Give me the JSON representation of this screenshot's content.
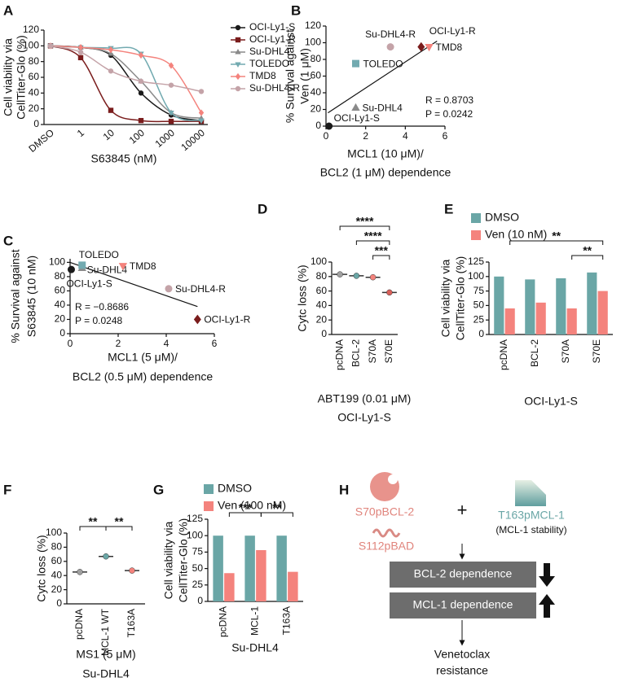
{
  "chart_data": [
    {
      "type": "line",
      "label": "A",
      "y_label": [
        "Cell viability via",
        "CellTiter-Glo (%)"
      ],
      "x_label": [
        "S63845 (nM)"
      ],
      "categories": [
        "DMSO",
        "1",
        "10",
        "100",
        "1000",
        "10000"
      ],
      "series": [
        {
          "name": "OCI-Ly1-S",
          "color": "#1a1a1a",
          "marker": "circle",
          "values": [
            100,
            98,
            88,
            40,
            12,
            5
          ]
        },
        {
          "name": "OCI-Ly1-R",
          "color": "#7a1c1c",
          "marker": "square",
          "values": [
            100,
            85,
            18,
            5,
            4,
            4
          ]
        },
        {
          "name": "Su-DHL4",
          "color": "#8a8a8a",
          "marker": "triangle",
          "values": [
            100,
            98,
            90,
            55,
            15,
            8
          ]
        },
        {
          "name": "TOLEDO",
          "color": "#72aab0",
          "marker": "triangle-down",
          "values": [
            100,
            98,
            97,
            90,
            15,
            5
          ]
        },
        {
          "name": "TMD8",
          "color": "#f4837d",
          "marker": "diamond",
          "values": [
            100,
            98,
            95,
            88,
            75,
            15
          ]
        },
        {
          "name": "Su-DHL4-R",
          "color": "#c4a3a8",
          "marker": "circle",
          "values": [
            100,
            92,
            68,
            55,
            50,
            42
          ]
        }
      ],
      "ylim": [
        0,
        120
      ],
      "yticks": [
        0,
        20,
        40,
        60,
        80,
        100,
        120
      ],
      "legend": "right"
    },
    {
      "type": "scatter",
      "label": "B",
      "y_label": [
        "% Survival against",
        "Ven (1 μM)"
      ],
      "x_label": [
        "MCL1 (10 μM)/",
        "BCL2 (1 μM) dependence"
      ],
      "points": [
        {
          "name": "OCI-Ly1-S",
          "x": 0.15,
          "y": 0,
          "color": "#1a1a1a",
          "marker": "circle"
        },
        {
          "name": "Su-DHL4",
          "x": 1.5,
          "y": 22,
          "color": "#8a8a8a",
          "marker": "triangle"
        },
        {
          "name": "TOLEDO",
          "x": 1.5,
          "y": 75,
          "color": "#72aab0",
          "marker": "square"
        },
        {
          "name": "Su-DHL4-R",
          "x": 3.25,
          "y": 95,
          "color": "#c4a3a8",
          "marker": "circle"
        },
        {
          "name": "OCI-Ly1-R",
          "x": 4.8,
          "y": 95,
          "color": "#7a1c1c",
          "marker": "diamond"
        },
        {
          "name": "TMD8",
          "x": 5.2,
          "y": 95,
          "color": "#f4837d",
          "marker": "triangle-down"
        }
      ],
      "fit": {
        "x": [
          0.1,
          5.6
        ],
        "y": [
          16,
          102
        ]
      },
      "annotations": [
        "R = 0.8703",
        "P = 0.0242"
      ],
      "xlim": [
        0,
        6
      ],
      "xticks": [
        0,
        2,
        4,
        6
      ],
      "ylim": [
        0,
        120
      ],
      "yticks": [
        0,
        20,
        40,
        60,
        80,
        100,
        120
      ]
    },
    {
      "type": "scatter",
      "label": "C",
      "y_label": [
        "% Survival against",
        "S63845 (10 nM)"
      ],
      "x_label": [
        "MCL1 (5 μM)/",
        "BCL2 (0.5 μM) dependence"
      ],
      "points": [
        {
          "name": "OCI-Ly1-S",
          "x": 0.05,
          "y": 90,
          "color": "#1a1a1a",
          "marker": "circle"
        },
        {
          "name": "Su-DHL4",
          "x": 0.5,
          "y": 92,
          "color": "#8a8a8a",
          "marker": "triangle"
        },
        {
          "name": "TOLEDO",
          "x": 0.5,
          "y": 96,
          "color": "#72aab0",
          "marker": "square"
        },
        {
          "name": "TMD8",
          "x": 2.2,
          "y": 95,
          "color": "#f4837d",
          "marker": "triangle-down"
        },
        {
          "name": "Su-DHL4-R",
          "x": 4.1,
          "y": 63,
          "color": "#c4a3a8",
          "marker": "circle"
        },
        {
          "name": "OCI-Ly1-R",
          "x": 5.3,
          "y": 20,
          "color": "#7a1c1c",
          "marker": "diamond"
        }
      ],
      "fit": {
        "x": [
          0,
          5.3
        ],
        "y": [
          100,
          38
        ]
      },
      "annotations": [
        "R = −0.8686",
        "P = 0.0248"
      ],
      "xlim": [
        0,
        6
      ],
      "xticks": [
        0,
        2,
        4,
        6
      ],
      "ylim": [
        0,
        105
      ],
      "yticks": [
        0,
        20,
        40,
        60,
        80,
        100
      ]
    },
    {
      "type": "dot",
      "label": "D",
      "y_label": [
        "Cytc loss (%)"
      ],
      "x_label": [
        "ABT199 (0.01 μM)",
        "OCI-Ly1-S"
      ],
      "categories": [
        "pcDNA",
        "BCL-2",
        "S70A",
        "S70E"
      ],
      "values": [
        83,
        81,
        79,
        58
      ],
      "colors": [
        "#a0a0a0",
        "#6aa6a6",
        "#f4837d",
        "#d9605a"
      ],
      "ylim": [
        0,
        100
      ],
      "yticks": [
        0,
        20,
        40,
        60,
        80,
        100
      ],
      "significance": [
        {
          "from": 0,
          "to": 3,
          "label": "****"
        },
        {
          "from": 1,
          "to": 3,
          "label": "****"
        },
        {
          "from": 2,
          "to": 3,
          "label": "***"
        }
      ]
    },
    {
      "type": "bar",
      "label": "E",
      "y_label": [
        "Cell viability via",
        "CellTiter-Glo (%)"
      ],
      "x_label": [
        "OCI-Ly1-S"
      ],
      "categories": [
        "pcDNA",
        "BCL-2",
        "S70A",
        "S70E"
      ],
      "series": [
        {
          "name": "DMSO",
          "color": "#6aa6a6",
          "values": [
            100,
            95,
            97,
            107
          ]
        },
        {
          "name": "Ven (10 nM)",
          "color": "#f4837d",
          "values": [
            45,
            55,
            45,
            75
          ]
        }
      ],
      "ylim": [
        0,
        125
      ],
      "yticks": [
        0,
        25,
        50,
        75,
        100,
        125
      ],
      "legend": "top",
      "significance": [
        {
          "series": 1,
          "from": 0,
          "to": 3,
          "label": "**"
        },
        {
          "series": 1,
          "from": 2,
          "to": 3,
          "label": "**"
        }
      ]
    },
    {
      "type": "dot",
      "label": "F",
      "y_label": [
        "Cytc loss (%)"
      ],
      "x_label": [
        "MS1 (5 μM)",
        "Su-DHL4"
      ],
      "categories": [
        "pcDNA",
        "MCL-1 WT",
        "T163A"
      ],
      "values": [
        45,
        67,
        47
      ],
      "colors": [
        "#a0a0a0",
        "#6aa6a6",
        "#f4837d"
      ],
      "ylim": [
        0,
        100
      ],
      "yticks": [
        0,
        20,
        40,
        60,
        80,
        100
      ],
      "significance": [
        {
          "from": 0,
          "to": 1,
          "label": "**"
        },
        {
          "from": 1,
          "to": 2,
          "label": "**"
        }
      ]
    },
    {
      "type": "bar",
      "label": "G",
      "y_label": [
        "Cell viability via",
        "CellTiter-Glo (%)"
      ],
      "x_label": [
        "Su-DHL4"
      ],
      "categories": [
        "pcDNA",
        "MCL-1",
        "T163A"
      ],
      "series": [
        {
          "name": "DMSO",
          "color": "#6aa6a6",
          "values": [
            100,
            100,
            100
          ]
        },
        {
          "name": "Ven (100 nM)",
          "color": "#f4837d",
          "values": [
            43,
            78,
            45
          ]
        }
      ],
      "ylim": [
        0,
        125
      ],
      "yticks": [
        0,
        25,
        50,
        75,
        100,
        125
      ],
      "legend": "top",
      "significance": [
        {
          "series": 1,
          "from": 0,
          "to": 1,
          "label": "***"
        },
        {
          "series": 1,
          "from": 1,
          "to": 2,
          "label": "**"
        }
      ]
    }
  ],
  "diagram": {
    "label": "H",
    "left_items": [
      "S70pBCL-2",
      "S112pBAD"
    ],
    "plus": "+",
    "right_item": "T163pMCL-1",
    "right_note": "(MCL-1 stability)",
    "boxes": [
      "BCL-2 dependence",
      "MCL-1 dependence"
    ],
    "outcome": [
      "Venetoclax",
      "resistance"
    ]
  }
}
